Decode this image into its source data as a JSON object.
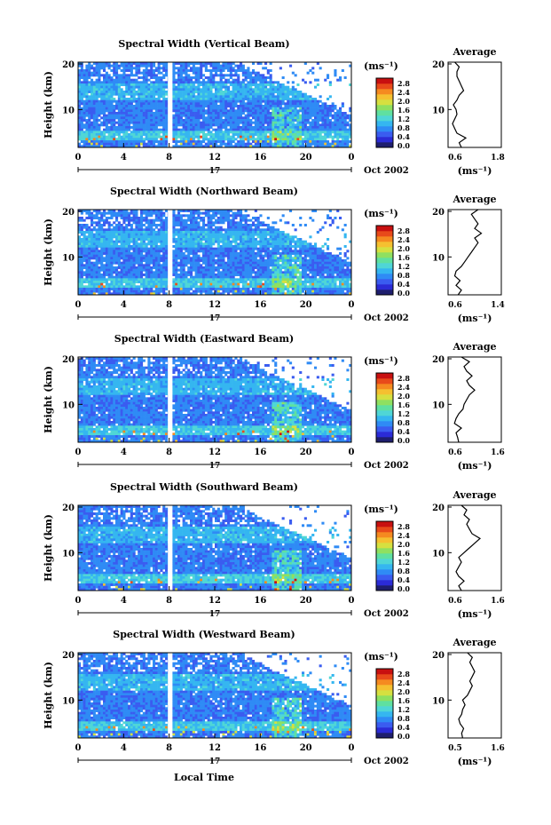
{
  "figure": {
    "xlabel": "Local Time",
    "colors": {
      "colormap": [
        "#1e1e6e",
        "#2b2bd6",
        "#3a5cf0",
        "#2f8bf5",
        "#35b6f0",
        "#4fd6d6",
        "#5fe0a0",
        "#8fe060",
        "#d6e040",
        "#f5c030",
        "#f58a20",
        "#e84a1a",
        "#c81010"
      ],
      "gap": "#ffffff",
      "frame": "#000000"
    },
    "panels": [
      {
        "title": "Spectral Width (Vertical Beam)",
        "ylabel": "Height (km)",
        "y_ticks": [
          "20",
          "10"
        ],
        "x_ticks": [
          "0",
          "4",
          "8",
          "12",
          "16",
          "20",
          "0"
        ],
        "date_center": "17",
        "date_label": "Oct 2002",
        "colorbar": {
          "unit": "(ms⁻¹)",
          "ticks": [
            "2.8",
            "2.4",
            "2.0",
            "1.6",
            "1.2",
            "0.8",
            "0.4",
            "0.0"
          ]
        },
        "avg": {
          "title": "Average",
          "unit": "(ms⁻¹)",
          "y_ticks": [
            "20",
            "10"
          ],
          "x_ticks": [
            "0.6",
            "1.8"
          ]
        }
      },
      {
        "title": "Spectral Width (Northward Beam)",
        "ylabel": "Height (km)",
        "y_ticks": [
          "20",
          "10"
        ],
        "x_ticks": [
          "0",
          "4",
          "8",
          "12",
          "16",
          "20",
          "0"
        ],
        "date_center": "17",
        "date_label": "Oct 2002",
        "colorbar": {
          "unit": "(ms⁻¹)",
          "ticks": [
            "2.8",
            "2.4",
            "2.0",
            "1.6",
            "1.2",
            "0.8",
            "0.4",
            "0.0"
          ]
        },
        "avg": {
          "title": "Average",
          "unit": "(ms⁻¹)",
          "y_ticks": [
            "20",
            "10"
          ],
          "x_ticks": [
            "0.6",
            "1.4"
          ]
        }
      },
      {
        "title": "Spectral Width (Eastward Beam)",
        "ylabel": "Height (km)",
        "y_ticks": [
          "20",
          "10"
        ],
        "x_ticks": [
          "0",
          "4",
          "8",
          "12",
          "16",
          "20",
          "0"
        ],
        "date_center": "17",
        "date_label": "Oct 2002",
        "colorbar": {
          "unit": "(ms⁻¹)",
          "ticks": [
            "2.8",
            "2.4",
            "2.0",
            "1.6",
            "1.2",
            "0.8",
            "0.4",
            "0.0"
          ]
        },
        "avg": {
          "title": "Average",
          "unit": "(ms⁻¹)",
          "y_ticks": [
            "20",
            "10"
          ],
          "x_ticks": [
            "0.6",
            "1.6"
          ]
        }
      },
      {
        "title": "Spectral Width (Southward Beam)",
        "ylabel": "Height (km)",
        "y_ticks": [
          "20",
          "10"
        ],
        "x_ticks": [
          "0",
          "4",
          "8",
          "12",
          "16",
          "20",
          "0"
        ],
        "date_center": "17",
        "date_label": "Oct 2002",
        "colorbar": {
          "unit": "(ms⁻¹)",
          "ticks": [
            "2.8",
            "2.4",
            "2.0",
            "1.6",
            "1.2",
            "0.8",
            "0.4",
            "0.0"
          ]
        },
        "avg": {
          "title": "Average",
          "unit": "(ms⁻¹)",
          "y_ticks": [
            "20",
            "10"
          ],
          "x_ticks": [
            "0.6",
            "1.6"
          ]
        }
      },
      {
        "title": "Spectral Width (Westward Beam)",
        "ylabel": "Height (km)",
        "y_ticks": [
          "20",
          "10"
        ],
        "x_ticks": [
          "0",
          "4",
          "8",
          "12",
          "16",
          "20",
          "0"
        ],
        "date_center": "17",
        "date_label": "Oct 2002",
        "colorbar": {
          "unit": "(ms⁻¹)",
          "ticks": [
            "2.8",
            "2.4",
            "2.0",
            "1.6",
            "1.2",
            "0.8",
            "0.4",
            "0.0"
          ]
        },
        "avg": {
          "title": "Average",
          "unit": "(ms⁻¹)",
          "y_ticks": [
            "20",
            "10"
          ],
          "x_ticks": [
            "0.5",
            "1.6"
          ]
        }
      }
    ]
  },
  "chart_data": [
    {
      "type": "heatmap",
      "title": "Spectral Width (Vertical Beam)",
      "xlabel": "Local Time",
      "ylabel": "Height (km)",
      "xlim": [
        0,
        24
      ],
      "ylim": [
        2,
        20
      ],
      "colorbar_range": [
        0.0,
        2.8
      ],
      "data_gap_hour": 8,
      "average_profile": {
        "x_range": [
          0.6,
          1.8
        ],
        "height": [
          2,
          3,
          4,
          5,
          6,
          7,
          8,
          9,
          10,
          11,
          12,
          13,
          14,
          15,
          16,
          17,
          18,
          19,
          20
        ],
        "value": [
          0.9,
          0.85,
          1.0,
          0.8,
          0.75,
          0.7,
          0.75,
          0.8,
          0.78,
          0.72,
          0.8,
          0.85,
          0.95,
          0.9,
          0.85,
          0.8,
          0.8,
          0.85,
          0.75
        ]
      }
    },
    {
      "type": "heatmap",
      "title": "Spectral Width (Northward Beam)",
      "xlabel": "Local Time",
      "ylabel": "Height (km)",
      "xlim": [
        0,
        24
      ],
      "ylim": [
        2,
        20
      ],
      "colorbar_range": [
        0.0,
        2.8
      ],
      "data_gap_hour": 8,
      "average_profile": {
        "x_range": [
          0.6,
          1.4
        ],
        "height": [
          2,
          3,
          4,
          5,
          6,
          7,
          8,
          9,
          10,
          11,
          12,
          13,
          14,
          15,
          16,
          17,
          18,
          19,
          20
        ],
        "value": [
          0.75,
          0.8,
          0.72,
          0.78,
          0.7,
          0.72,
          0.8,
          0.85,
          0.9,
          0.95,
          1.0,
          1.05,
          1.0,
          1.1,
          1.0,
          1.05,
          1.0,
          0.95,
          1.05
        ]
      }
    },
    {
      "type": "heatmap",
      "title": "Spectral Width (Eastward Beam)",
      "xlabel": "Local Time",
      "ylabel": "Height (km)",
      "xlim": [
        0,
        24
      ],
      "ylim": [
        2,
        20
      ],
      "colorbar_range": [
        0.0,
        2.8
      ],
      "data_gap_hour": 8,
      "average_profile": {
        "x_range": [
          0.6,
          1.6
        ],
        "height": [
          2,
          3,
          4,
          5,
          6,
          7,
          8,
          9,
          10,
          11,
          12,
          13,
          14,
          15,
          16,
          17,
          18,
          19,
          20
        ],
        "value": [
          0.8,
          0.78,
          0.75,
          0.85,
          0.72,
          0.75,
          0.8,
          0.88,
          0.9,
          0.95,
          1.0,
          1.1,
          1.0,
          0.95,
          1.05,
          0.95,
          0.9,
          1.0,
          0.85
        ]
      }
    },
    {
      "type": "heatmap",
      "title": "Spectral Width (Southward Beam)",
      "xlabel": "Local Time",
      "ylabel": "Height (km)",
      "xlim": [
        0,
        24
      ],
      "ylim": [
        2,
        20
      ],
      "colorbar_range": [
        0.0,
        2.8
      ],
      "data_gap_hour": 8,
      "average_profile": {
        "x_range": [
          0.6,
          1.6
        ],
        "height": [
          2,
          3,
          4,
          5,
          6,
          7,
          8,
          9,
          10,
          11,
          12,
          13,
          14,
          15,
          16,
          17,
          18,
          19,
          20
        ],
        "value": [
          0.85,
          0.8,
          0.9,
          0.8,
          0.75,
          0.8,
          0.85,
          0.8,
          0.9,
          1.0,
          1.1,
          1.2,
          1.05,
          1.0,
          0.95,
          1.0,
          0.9,
          0.95,
          0.85
        ]
      }
    },
    {
      "type": "heatmap",
      "title": "Spectral Width (Westward Beam)",
      "xlabel": "Local Time",
      "ylabel": "Height (km)",
      "xlim": [
        0,
        24
      ],
      "ylim": [
        2,
        20
      ],
      "colorbar_range": [
        0.0,
        2.8
      ],
      "data_gap_hour": 8,
      "average_profile": {
        "x_range": [
          0.5,
          1.6
        ],
        "height": [
          2,
          3,
          4,
          5,
          6,
          7,
          8,
          9,
          10,
          11,
          12,
          13,
          14,
          15,
          16,
          17,
          18,
          19,
          20
        ],
        "value": [
          0.8,
          0.78,
          0.82,
          0.75,
          0.72,
          0.78,
          0.8,
          0.85,
          0.8,
          0.9,
          0.95,
          1.0,
          0.95,
          1.0,
          1.05,
          1.0,
          0.95,
          1.0,
          0.9
        ]
      }
    }
  ]
}
